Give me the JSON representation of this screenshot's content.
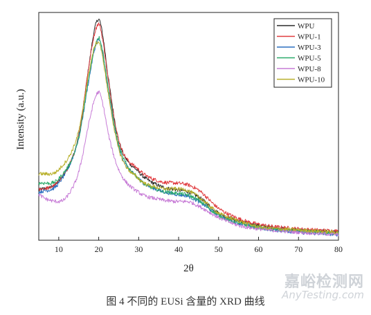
{
  "chart_data": {
    "type": "line",
    "title": "",
    "xlabel": "2θ",
    "ylabel": "Intensity (a.u.)",
    "xlim": [
      5,
      80
    ],
    "ylim": [
      0,
      100
    ],
    "xticks": [
      10,
      20,
      30,
      40,
      50,
      60,
      70,
      80
    ],
    "grid": false,
    "legend_position": "top-right",
    "series": [
      {
        "name": "WPU",
        "color": "#2b2b2b",
        "noise": 0.8,
        "x": [
          5,
          10,
          15,
          17.5,
          19,
          20,
          21,
          22.5,
          25,
          30,
          35,
          40,
          42,
          45,
          50,
          55,
          60,
          70,
          80
        ],
        "y": [
          22,
          26,
          46,
          76,
          93,
          97,
          90,
          70,
          44,
          30,
          24,
          22,
          21.5,
          19,
          12,
          8.5,
          6.5,
          4.5,
          3.5
        ]
      },
      {
        "name": "WPU-1",
        "color": "#e03a3e",
        "noise": 0.8,
        "x": [
          5,
          10,
          15,
          17.5,
          19,
          20,
          21,
          22.5,
          25,
          30,
          35,
          40,
          42,
          45,
          50,
          55,
          60,
          70,
          80
        ],
        "y": [
          22,
          26,
          46,
          76,
          91,
          95,
          88,
          69,
          44,
          31,
          26,
          25,
          24.5,
          22,
          14,
          9.5,
          7,
          5,
          4
        ]
      },
      {
        "name": "WPU-3",
        "color": "#2a6fc0",
        "noise": 0.8,
        "x": [
          5,
          10,
          15,
          17.5,
          19,
          20,
          21,
          22.5,
          25,
          30,
          35,
          40,
          42,
          45,
          50,
          55,
          60,
          70,
          80
        ],
        "y": [
          21,
          25,
          45,
          70,
          84,
          88,
          82,
          65,
          41,
          27,
          22,
          20,
          19.5,
          17,
          11,
          7.5,
          5.5,
          3.5,
          2.5
        ]
      },
      {
        "name": "WPU-5",
        "color": "#2bab6a",
        "noise": 0.8,
        "x": [
          5,
          10,
          15,
          17.5,
          19,
          20,
          21,
          22.5,
          25,
          30,
          35,
          40,
          42,
          45,
          50,
          55,
          60,
          70,
          80
        ],
        "y": [
          25,
          27,
          45,
          71,
          85,
          89,
          83,
          66,
          42,
          27,
          22,
          20.5,
          20,
          17.5,
          11,
          7.5,
          5.5,
          4,
          3
        ]
      },
      {
        "name": "WPU-8",
        "color": "#c77bd6",
        "noise": 0.8,
        "x": [
          5,
          7,
          10,
          12,
          15,
          17.5,
          19,
          20,
          21,
          22.5,
          25,
          30,
          35,
          40,
          42,
          45,
          50,
          55,
          60,
          70,
          80
        ],
        "y": [
          20,
          18,
          17,
          19,
          30,
          51,
          62,
          65,
          60,
          46,
          31,
          21,
          18,
          17,
          17,
          15,
          10,
          6.5,
          5,
          3.5,
          2.5
        ]
      },
      {
        "name": "WPU-10",
        "color": "#b8b02a",
        "noise": 0.8,
        "x": [
          5,
          10,
          15,
          17.5,
          19,
          20,
          21,
          22.5,
          25,
          30,
          35,
          40,
          42,
          45,
          50,
          55,
          60,
          70,
          80
        ],
        "y": [
          29,
          31,
          48,
          73,
          85,
          87,
          80,
          63,
          40,
          27,
          23,
          22.5,
          22,
          19,
          12,
          8.5,
          6,
          4.5,
          3.5
        ]
      }
    ]
  },
  "caption": "图 4   不同的 EUSi 含量的 XRD 曲线",
  "watermark": {
    "cn": "嘉峪检测网",
    "en": "AnyTesting.com"
  }
}
